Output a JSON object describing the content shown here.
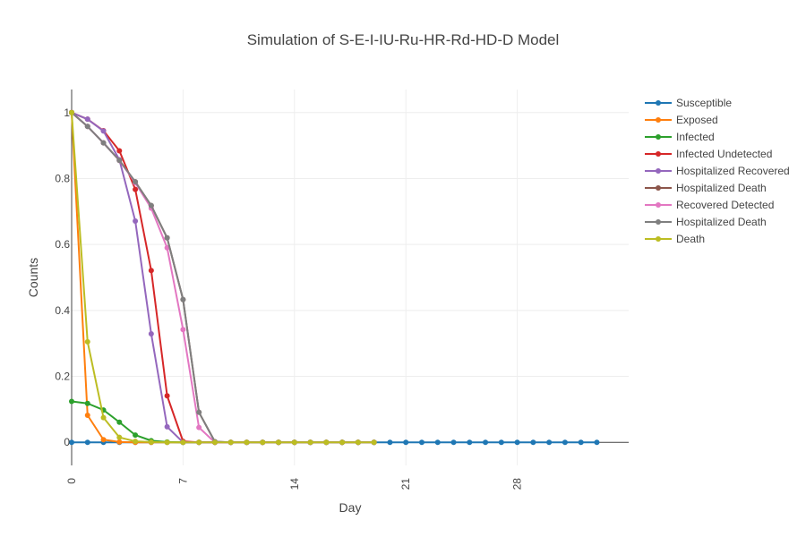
{
  "chart_data": {
    "type": "line",
    "title": "Simulation of S-E-I-IU-Ru-HR-Rd-HD-D Model",
    "xlabel": "Day",
    "ylabel": "Counts",
    "xlim": [
      0,
      35
    ],
    "ylim": [
      -0.07,
      1.07
    ],
    "xticks": [
      0,
      7,
      14,
      21,
      28
    ],
    "xtick_labels": [
      "0",
      "7",
      "14",
      "21",
      "28"
    ],
    "yticks": [
      0,
      0.2,
      0.4,
      0.6,
      0.8,
      1
    ],
    "ytick_labels": [
      "0",
      "0.2",
      "0.4",
      "0.6",
      "0.8",
      "1"
    ],
    "grid": true,
    "legend_position": "top-right, outside plot",
    "series": [
      {
        "name": "Susceptible",
        "color": "#1f77b4",
        "x": [
          0,
          1,
          2,
          3,
          4,
          5,
          6,
          7,
          8,
          9,
          10,
          11,
          12,
          13,
          14,
          15,
          16,
          17,
          18,
          19,
          20,
          21,
          22,
          23,
          24,
          25,
          26,
          27,
          28,
          29,
          30,
          31,
          32,
          33
        ],
        "y": [
          0,
          0,
          0,
          0,
          0,
          0,
          0,
          0,
          0,
          0,
          0,
          0,
          0,
          0,
          0,
          0,
          0,
          0,
          0,
          0,
          0,
          0,
          0,
          0,
          0,
          0,
          0,
          0,
          0,
          0,
          0,
          0,
          0,
          0
        ]
      },
      {
        "name": "Exposed",
        "color": "#ff7f0e",
        "x": [
          0,
          1,
          2,
          3,
          4,
          5,
          6,
          7,
          8,
          9,
          10,
          11,
          12,
          13,
          14,
          15,
          16,
          17,
          18,
          19
        ],
        "y": [
          1,
          0.082,
          0.008,
          0.001,
          0,
          0,
          0,
          0,
          0,
          0,
          0,
          0,
          0,
          0,
          0,
          0,
          0,
          0,
          0,
          0
        ]
      },
      {
        "name": "Infected",
        "color": "#2ca02c",
        "x": [
          0,
          1,
          2,
          3,
          4,
          5,
          6,
          7,
          8,
          9,
          10,
          11,
          12,
          13,
          14,
          15,
          16,
          17,
          18,
          19
        ],
        "y": [
          0.124,
          0.118,
          0.098,
          0.061,
          0.022,
          0.005,
          0.001,
          0,
          0,
          0,
          0,
          0,
          0,
          0,
          0,
          0,
          0,
          0,
          0,
          0
        ]
      },
      {
        "name": "Infected Undetected",
        "color": "#d62728",
        "x": [
          0,
          1,
          2,
          3,
          4,
          5,
          6,
          7,
          8,
          9,
          10,
          11,
          12,
          13,
          14,
          15,
          16,
          17,
          18,
          19
        ],
        "y": [
          1,
          0.98,
          0.945,
          0.884,
          0.767,
          0.521,
          0.141,
          0.003,
          0,
          0,
          0,
          0,
          0,
          0,
          0,
          0,
          0,
          0,
          0,
          0
        ]
      },
      {
        "name": "Hospitalized Recovered",
        "color": "#9467bd",
        "x": [
          0,
          1,
          2,
          3,
          4,
          5,
          6,
          7,
          8,
          9,
          10,
          11,
          12,
          13,
          14,
          15,
          16,
          17,
          18,
          19
        ],
        "y": [
          1,
          0.98,
          0.944,
          0.857,
          0.671,
          0.329,
          0.047,
          0,
          0,
          0,
          0,
          0,
          0,
          0,
          0,
          0,
          0,
          0,
          0,
          0
        ]
      },
      {
        "name": "Hospitalized Death",
        "color": "#8c564b",
        "x": [
          0,
          1,
          2,
          3,
          4,
          5,
          6,
          7,
          8,
          9,
          10,
          11,
          12,
          13,
          14,
          15,
          16,
          17,
          18,
          19
        ],
        "y": [
          1,
          0.958,
          0.908,
          0.855,
          0.79,
          0.718,
          0.62,
          0.433,
          0.091,
          0.002,
          0,
          0,
          0,
          0,
          0,
          0,
          0,
          0,
          0,
          0
        ]
      },
      {
        "name": "Recovered Detected",
        "color": "#e377c2",
        "x": [
          0,
          1,
          2,
          3,
          4,
          5,
          6,
          7,
          8,
          9,
          10,
          11,
          12,
          13,
          14,
          15,
          16,
          17,
          18,
          19
        ],
        "y": [
          1,
          0.958,
          0.908,
          0.855,
          0.787,
          0.71,
          0.59,
          0.342,
          0.045,
          0,
          0,
          0,
          0,
          0,
          0,
          0,
          0,
          0,
          0,
          0
        ]
      },
      {
        "name": "Hospitalized Death",
        "color": "#7f7f7f",
        "x": [
          0,
          1,
          2,
          3,
          4,
          5,
          6,
          7,
          8,
          9,
          10,
          11,
          12,
          13,
          14,
          15,
          16,
          17,
          18,
          19
        ],
        "y": [
          1,
          0.958,
          0.908,
          0.855,
          0.79,
          0.718,
          0.62,
          0.433,
          0.091,
          0.002,
          0,
          0,
          0,
          0,
          0,
          0,
          0,
          0,
          0,
          0
        ]
      },
      {
        "name": "Death",
        "color": "#bcbd22",
        "x": [
          0,
          1,
          2,
          3,
          4,
          5,
          6,
          7,
          8,
          9,
          10,
          11,
          12,
          13,
          14,
          15,
          16,
          17,
          18,
          19
        ],
        "y": [
          1,
          0.305,
          0.075,
          0.015,
          0.003,
          0.001,
          0,
          0,
          0,
          0,
          0,
          0,
          0,
          0,
          0,
          0,
          0,
          0,
          0,
          0
        ]
      }
    ]
  }
}
